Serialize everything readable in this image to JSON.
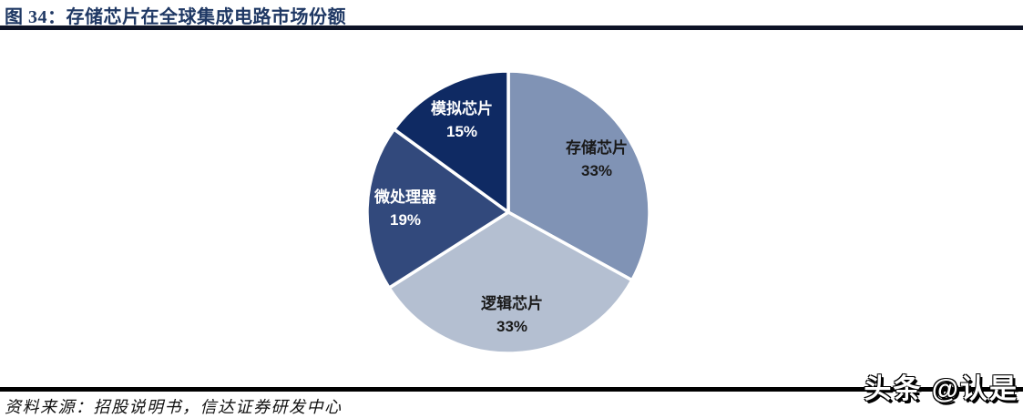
{
  "title": {
    "text": "图 34：存储芯片在全球集成电路市场份额"
  },
  "source": {
    "text": "资料来源：招股说明书，信达证券研发中心"
  },
  "watermark": {
    "text": "头条 @认是"
  },
  "colors": {
    "title_text": "#1F3864",
    "title_rule": "#0d1326",
    "footer_rule": "#000000",
    "background": "#ffffff"
  },
  "chart_data": {
    "type": "pie",
    "title": "存储芯片在全球集成电路市场份额",
    "start_angle_deg": 0,
    "direction": "clockwise",
    "legend_position": "none",
    "slices": [
      {
        "label": "存储芯片",
        "value": 33,
        "display": "33%",
        "color": "#8093B5",
        "text_color": "#1A1A1A"
      },
      {
        "label": "逻辑芯片",
        "value": 33,
        "display": "33%",
        "color": "#B4BFD1",
        "text_color": "#1A1A1A"
      },
      {
        "label": "微处理器",
        "value": 19,
        "display": "19%",
        "color": "#32497C",
        "text_color": "#FFFFFF"
      },
      {
        "label": "模拟芯片",
        "value": 15,
        "display": "15%",
        "color": "#0F2A63",
        "text_color": "#FFFFFF"
      }
    ]
  }
}
